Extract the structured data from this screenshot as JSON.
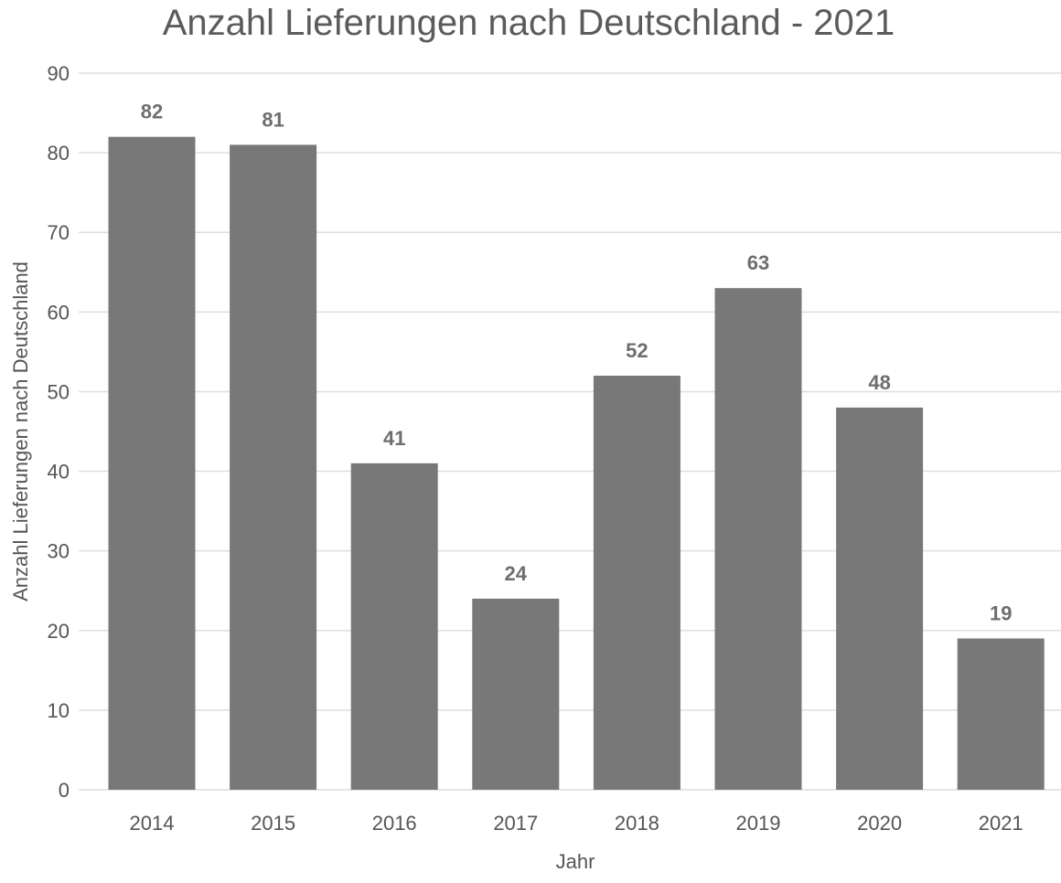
{
  "chart_data": {
    "type": "bar",
    "title": "Anzahl Lieferungen nach Deutschland - 2021",
    "xlabel": "Jahr",
    "ylabel": "Anzahl Lieferungen nach Deutschland",
    "categories": [
      "2014",
      "2015",
      "2016",
      "2017",
      "2018",
      "2019",
      "2020",
      "2021"
    ],
    "values": [
      82,
      81,
      41,
      24,
      52,
      63,
      48,
      19
    ],
    "ylim": [
      0,
      90
    ],
    "yticks": [
      "0",
      "10",
      "20",
      "30",
      "40",
      "50",
      "60",
      "70",
      "80",
      "90"
    ],
    "grid": true,
    "legend": "none",
    "colors": {
      "bar": "#787878",
      "grid": "#dedede",
      "text": "#555555",
      "data_label": "#6e6e6e"
    }
  }
}
